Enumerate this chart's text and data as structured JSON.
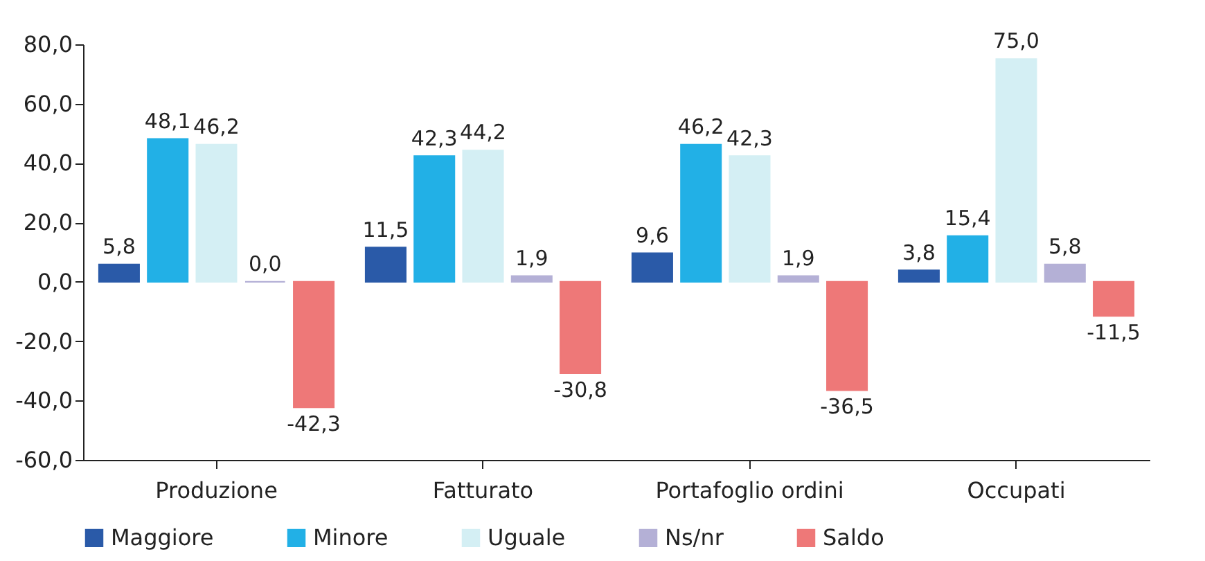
{
  "chart_data": {
    "type": "bar",
    "categories": [
      "Produzione",
      "Fatturato",
      "Portafoglio ordini",
      "Occupati"
    ],
    "series": [
      {
        "name": "Maggiore",
        "color": "#2a5aa8",
        "values": [
          5.8,
          11.5,
          9.6,
          3.8
        ],
        "value_labels": [
          "5,8",
          "11,5",
          "9,6",
          "3,8"
        ]
      },
      {
        "name": "Minore",
        "color": "#22b0e6",
        "values": [
          48.1,
          42.3,
          46.2,
          15.4
        ],
        "value_labels": [
          "48,1",
          "42,3",
          "46,2",
          "15,4"
        ]
      },
      {
        "name": "Uguale",
        "color": "#d4eff4",
        "values": [
          46.2,
          44.2,
          42.3,
          75.0
        ],
        "value_labels": [
          "46,2",
          "44,2",
          "42,3",
          "75,0"
        ]
      },
      {
        "name": "Ns/nr",
        "color": "#b4b0d6",
        "values": [
          0.0,
          1.9,
          1.9,
          5.8
        ],
        "value_labels": [
          "0,0",
          "1,9",
          "1,9",
          "5,8"
        ]
      },
      {
        "name": "Saldo",
        "color": "#ee7878",
        "values": [
          -42.3,
          -30.8,
          -36.5,
          -11.5
        ],
        "value_labels": [
          "-42,3",
          "-30,8",
          "-36,5",
          "-11,5"
        ]
      }
    ],
    "ylim": [
      -60,
      80
    ],
    "yticks": [
      {
        "value": -60,
        "label": "-60,0"
      },
      {
        "value": -40,
        "label": "-40,0"
      },
      {
        "value": -20,
        "label": "-20,0"
      },
      {
        "value": 0,
        "label": "0,0"
      },
      {
        "value": 20,
        "label": "20,0"
      },
      {
        "value": 40,
        "label": "40,0"
      },
      {
        "value": 60,
        "label": "60,0"
      },
      {
        "value": 80,
        "label": "80,0"
      }
    ],
    "grid": false,
    "legend": "bottom"
  }
}
